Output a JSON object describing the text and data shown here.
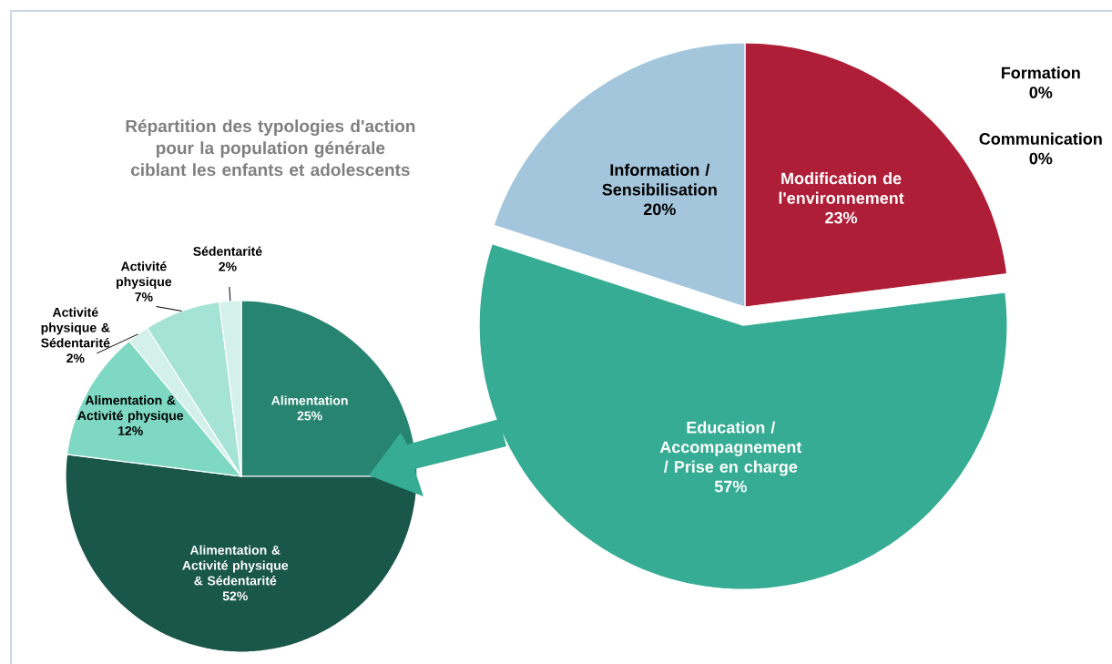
{
  "chart_data": [
    {
      "type": "pie",
      "title": "Répartition des typologies d'action pour la population générale ciblant les enfants et adolescents",
      "categories": [
        "Modification de l'environnement",
        "Education / Accompagnement / Prise en charge",
        "Information / Sensibilisation",
        "Communication",
        "Formation"
      ],
      "values": [
        23,
        57,
        20,
        0,
        0
      ],
      "value_labels": [
        "23%",
        "57%",
        "20%",
        "0%",
        "0%"
      ],
      "colors": [
        "#ae1e37",
        "#35ac93",
        "#a3c6dc",
        null,
        null
      ]
    },
    {
      "type": "pie",
      "categories": [
        "Alimentation",
        "Alimentation & Activité physique & Sédentarité",
        "Alimentation & Activité physique",
        "Activité physique & Sédentarité",
        "Activité physique",
        "Sédentarité"
      ],
      "values": [
        25,
        52,
        12,
        2,
        7,
        2
      ],
      "value_labels": [
        "25%",
        "52%",
        "12%",
        "2%",
        "7%",
        "2%"
      ],
      "colors": [
        "#268470",
        "#1a574b",
        "#7ed8c4",
        "#d3f0ea",
        "#a6e3d7",
        "#d3f0ea"
      ]
    }
  ]
}
